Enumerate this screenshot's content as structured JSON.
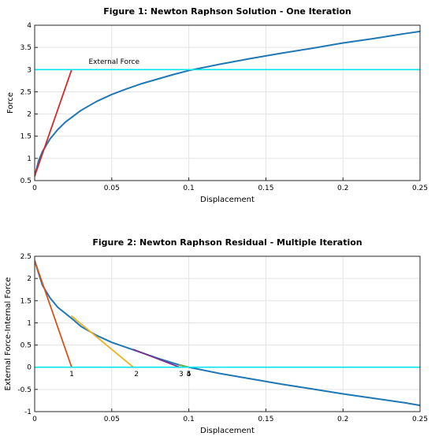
{
  "chart_data": [
    {
      "type": "line",
      "title": "Figure 1: Newton Raphson Solution - One Iteration",
      "xlabel": "Displacement",
      "ylabel": "Force",
      "xlim": [
        0,
        0.25
      ],
      "ylim": [
        0.5,
        4
      ],
      "xticks": [
        "0",
        "0.05",
        "0.1",
        "0.15",
        "0.2",
        "0.25"
      ],
      "yticks": [
        "0.5",
        "1",
        "1.5",
        "2",
        "2.5",
        "3",
        "3.5",
        "4"
      ],
      "grid": true,
      "series": [
        {
          "color": "#1f77b4",
          "x": [
            0,
            0.0025,
            0.005,
            0.01,
            0.015,
            0.02,
            0.03,
            0.04,
            0.05,
            0.06,
            0.07,
            0.08,
            0.09,
            0.1,
            0.12,
            0.14,
            0.16,
            0.18,
            0.2,
            0.22,
            0.24,
            0.25
          ],
          "y": [
            0.6,
            0.94,
            1.15,
            1.44,
            1.65,
            1.82,
            2.08,
            2.28,
            2.44,
            2.57,
            2.69,
            2.79,
            2.89,
            2.98,
            3.12,
            3.25,
            3.37,
            3.48,
            3.6,
            3.7,
            3.81,
            3.86
          ]
        },
        {
          "color": "#d62728",
          "x": [
            0,
            0.024
          ],
          "y": [
            0.6,
            3.0
          ]
        },
        {
          "color": "#00e5ee",
          "x": [
            0,
            0.25
          ],
          "y": [
            3.0,
            3.0
          ]
        }
      ],
      "annotations": [
        {
          "text": "External Force",
          "x": 0.035,
          "y": 3.13
        }
      ]
    },
    {
      "type": "line",
      "title": "Figure 2: Newton Raphson Residual - Multiple Iteration",
      "xlabel": "Displacement",
      "ylabel": "External Force-Internal Force",
      "xlim": [
        0,
        0.25
      ],
      "ylim": [
        -1,
        2.5
      ],
      "xticks": [
        "0",
        "0.05",
        "0.1",
        "0.15",
        "0.2",
        "0.25"
      ],
      "yticks": [
        "-1",
        "-0.5",
        "0",
        "0.5",
        "1",
        "1.5",
        "2",
        "2.5"
      ],
      "grid": true,
      "series": [
        {
          "color": "#1f77b4",
          "x": [
            0,
            0.005,
            0.01,
            0.015,
            0.024,
            0.03,
            0.04,
            0.05,
            0.065,
            0.08,
            0.094,
            0.1,
            0.12,
            0.14,
            0.16,
            0.18,
            0.2,
            0.22,
            0.24,
            0.25
          ],
          "y": [
            2.4,
            1.85,
            1.56,
            1.35,
            1.1,
            0.92,
            0.72,
            0.56,
            0.38,
            0.2,
            0.05,
            0.0,
            -0.14,
            -0.26,
            -0.38,
            -0.49,
            -0.6,
            -0.7,
            -0.8,
            -0.86
          ]
        },
        {
          "color": "#d95319",
          "x": [
            0,
            0.024
          ],
          "y": [
            2.4,
            0
          ]
        },
        {
          "color": "#edb120",
          "x": [
            0.024,
            0.064
          ],
          "y": [
            1.15,
            0
          ]
        },
        {
          "color": "#7e2f8e",
          "x": [
            0.064,
            0.094
          ],
          "y": [
            0.4,
            0
          ]
        },
        {
          "color": "#77ac30",
          "x": [
            0.094,
            0.1
          ],
          "y": [
            0.05,
            0
          ]
        },
        {
          "color": "#00e5ee",
          "x": [
            0,
            0.25
          ],
          "y": [
            0,
            0
          ]
        }
      ],
      "annotations": [
        {
          "text": "1",
          "x": 0.024,
          "y": -0.2
        },
        {
          "text": "2",
          "x": 0.066,
          "y": -0.2
        },
        {
          "text": "3",
          "x": 0.095,
          "y": -0.2
        },
        {
          "text": "4",
          "x": 0.1,
          "y": -0.2
        },
        {
          "text": "5",
          "x": 0.1,
          "y": -0.2
        }
      ]
    }
  ]
}
